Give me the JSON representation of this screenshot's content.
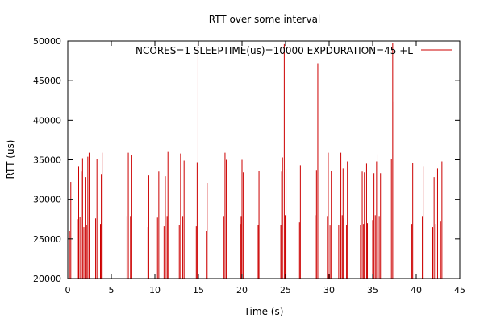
{
  "chart_data": {
    "type": "line",
    "title": "RTT over some interval",
    "xlabel": "Time (s)",
    "ylabel": "RTT (us)",
    "xlim": [
      0,
      45
    ],
    "ylim": [
      20000,
      50000
    ],
    "xticks": [
      0,
      5,
      10,
      15,
      20,
      25,
      30,
      35,
      40,
      45
    ],
    "yticks": [
      20000,
      25000,
      30000,
      35000,
      40000,
      45000,
      50000
    ],
    "grid": false,
    "legend_position": "top-right",
    "series": [
      {
        "name": "NCORES=1 SLEEPTIME(us)=10000 EXPDURATION=45 +L",
        "color": "#cc0000",
        "baseline": 20000,
        "spikes": [
          {
            "x": 0.2,
            "y": 26000
          },
          {
            "x": 0.35,
            "y": 32200
          },
          {
            "x": 1.1,
            "y": 27500
          },
          {
            "x": 1.25,
            "y": 34200
          },
          {
            "x": 1.4,
            "y": 27800
          },
          {
            "x": 1.55,
            "y": 33500
          },
          {
            "x": 1.7,
            "y": 35200
          },
          {
            "x": 1.85,
            "y": 26500
          },
          {
            "x": 2.0,
            "y": 32800
          },
          {
            "x": 2.15,
            "y": 26800
          },
          {
            "x": 2.3,
            "y": 35400
          },
          {
            "x": 2.45,
            "y": 35900
          },
          {
            "x": 3.2,
            "y": 27600
          },
          {
            "x": 3.35,
            "y": 35100
          },
          {
            "x": 3.75,
            "y": 26900
          },
          {
            "x": 3.85,
            "y": 33200
          },
          {
            "x": 3.95,
            "y": 35900
          },
          {
            "x": 6.8,
            "y": 27900
          },
          {
            "x": 6.95,
            "y": 35900
          },
          {
            "x": 7.2,
            "y": 27900
          },
          {
            "x": 7.35,
            "y": 35600
          },
          {
            "x": 9.2,
            "y": 26500
          },
          {
            "x": 9.3,
            "y": 33000
          },
          {
            "x": 10.3,
            "y": 27700
          },
          {
            "x": 10.45,
            "y": 33500
          },
          {
            "x": 11.05,
            "y": 26600
          },
          {
            "x": 11.2,
            "y": 32900
          },
          {
            "x": 11.4,
            "y": 27900
          },
          {
            "x": 11.5,
            "y": 36000
          },
          {
            "x": 12.8,
            "y": 26800
          },
          {
            "x": 12.95,
            "y": 35800
          },
          {
            "x": 13.2,
            "y": 27900
          },
          {
            "x": 13.35,
            "y": 34900
          },
          {
            "x": 14.75,
            "y": 26600
          },
          {
            "x": 14.85,
            "y": 34700
          },
          {
            "x": 14.95,
            "y": 49800
          },
          {
            "x": 15.9,
            "y": 26000
          },
          {
            "x": 16.0,
            "y": 32100
          },
          {
            "x": 17.9,
            "y": 27900
          },
          {
            "x": 18.05,
            "y": 35900
          },
          {
            "x": 18.2,
            "y": 35000
          },
          {
            "x": 19.8,
            "y": 26900
          },
          {
            "x": 19.9,
            "y": 27900
          },
          {
            "x": 20.0,
            "y": 35000
          },
          {
            "x": 20.15,
            "y": 33400
          },
          {
            "x": 21.85,
            "y": 26800
          },
          {
            "x": 21.95,
            "y": 33600
          },
          {
            "x": 24.45,
            "y": 26800
          },
          {
            "x": 24.55,
            "y": 33500
          },
          {
            "x": 24.65,
            "y": 35300
          },
          {
            "x": 24.85,
            "y": 49600
          },
          {
            "x": 24.95,
            "y": 28000
          },
          {
            "x": 25.05,
            "y": 33800
          },
          {
            "x": 26.6,
            "y": 27100
          },
          {
            "x": 26.7,
            "y": 34300
          },
          {
            "x": 28.4,
            "y": 28000
          },
          {
            "x": 28.55,
            "y": 33700
          },
          {
            "x": 28.7,
            "y": 47200
          },
          {
            "x": 29.8,
            "y": 27900
          },
          {
            "x": 29.9,
            "y": 35900
          },
          {
            "x": 30.1,
            "y": 26700
          },
          {
            "x": 30.25,
            "y": 33600
          },
          {
            "x": 31.1,
            "y": 26800
          },
          {
            "x": 31.25,
            "y": 32700
          },
          {
            "x": 31.35,
            "y": 35900
          },
          {
            "x": 31.5,
            "y": 28000
          },
          {
            "x": 31.6,
            "y": 33900
          },
          {
            "x": 31.7,
            "y": 27600
          },
          {
            "x": 32.0,
            "y": 26800
          },
          {
            "x": 32.1,
            "y": 34800
          },
          {
            "x": 33.6,
            "y": 26800
          },
          {
            "x": 33.8,
            "y": 33500
          },
          {
            "x": 33.95,
            "y": 26900
          },
          {
            "x": 34.05,
            "y": 33400
          },
          {
            "x": 34.3,
            "y": 34500
          },
          {
            "x": 34.4,
            "y": 27000
          },
          {
            "x": 35.0,
            "y": 27400
          },
          {
            "x": 35.15,
            "y": 33300
          },
          {
            "x": 35.3,
            "y": 28000
          },
          {
            "x": 35.45,
            "y": 34800
          },
          {
            "x": 35.6,
            "y": 35700
          },
          {
            "x": 35.75,
            "y": 27900
          },
          {
            "x": 35.9,
            "y": 33300
          },
          {
            "x": 37.15,
            "y": 35100
          },
          {
            "x": 37.3,
            "y": 49800
          },
          {
            "x": 37.45,
            "y": 42300
          },
          {
            "x": 39.5,
            "y": 26900
          },
          {
            "x": 39.6,
            "y": 34600
          },
          {
            "x": 40.7,
            "y": 27900
          },
          {
            "x": 40.8,
            "y": 34200
          },
          {
            "x": 41.9,
            "y": 26500
          },
          {
            "x": 42.05,
            "y": 32800
          },
          {
            "x": 42.25,
            "y": 26900
          },
          {
            "x": 42.45,
            "y": 33900
          },
          {
            "x": 42.8,
            "y": 27200
          },
          {
            "x": 42.95,
            "y": 34800
          }
        ]
      }
    ]
  }
}
